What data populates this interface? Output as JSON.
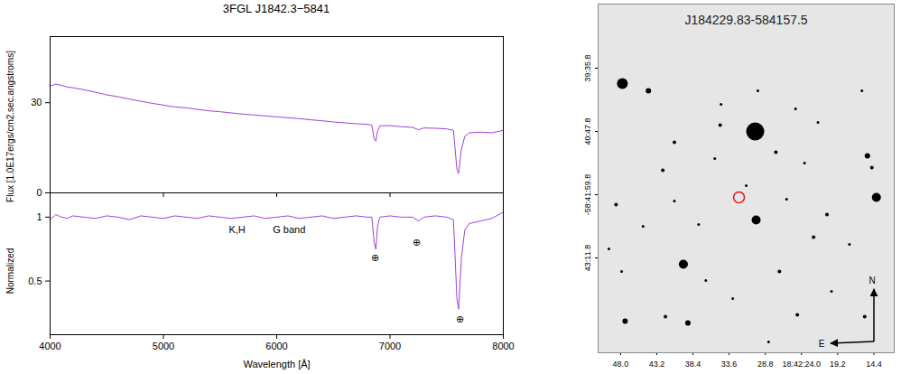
{
  "chart_data": [
    {
      "type": "line",
      "title": "3FGL J1842.3−5841",
      "ylabel": "Flux [1.0E17ergs/cm2.sec.angstroms]",
      "x": [
        4000,
        4050,
        4100,
        4150,
        4200,
        4300,
        4400,
        4500,
        4600,
        4700,
        4800,
        4900,
        5000,
        5100,
        5200,
        5300,
        5400,
        5500,
        5600,
        5700,
        5800,
        5900,
        6000,
        6100,
        6200,
        6300,
        6400,
        6500,
        6600,
        6700,
        6800,
        6840,
        6860,
        6875,
        6890,
        6910,
        7000,
        7100,
        7200,
        7250,
        7300,
        7400,
        7500,
        7560,
        7590,
        7605,
        7630,
        7660,
        7700,
        7800,
        7900,
        8000
      ],
      "values": [
        35.5,
        36.2,
        35.8,
        35.2,
        35.0,
        34.3,
        33.5,
        32.6,
        32.0,
        31.2,
        30.5,
        29.8,
        29.2,
        28.6,
        28.3,
        27.8,
        27.3,
        27.0,
        26.6,
        26.2,
        25.9,
        25.6,
        25.3,
        25.0,
        24.7,
        24.3,
        24.0,
        23.6,
        23.3,
        23.0,
        22.8,
        22.5,
        18.0,
        17.2,
        20.5,
        22.3,
        22.4,
        22.0,
        21.8,
        21.0,
        21.6,
        21.5,
        21.3,
        20.8,
        8.0,
        6.5,
        14.5,
        18.8,
        20.0,
        20.2,
        20.0,
        20.8
      ],
      "color": "#a040d8",
      "xlim": [
        4000,
        8000
      ],
      "xticks": [
        4000,
        5000,
        6000,
        7000,
        8000
      ],
      "ylim": [
        0,
        52
      ],
      "yticks": [
        0,
        30
      ],
      "tick_labels": "y"
    },
    {
      "type": "line",
      "ylabel": "Normalized",
      "xlabel": "Wavelength [Å]",
      "x": [
        4000,
        4050,
        4100,
        4150,
        4200,
        4300,
        4400,
        4500,
        4600,
        4700,
        4800,
        4900,
        5000,
        5100,
        5200,
        5300,
        5400,
        5500,
        5600,
        5700,
        5800,
        5900,
        6000,
        6100,
        6200,
        6300,
        6400,
        6500,
        6600,
        6700,
        6800,
        6840,
        6860,
        6875,
        6890,
        6910,
        7000,
        7100,
        7200,
        7250,
        7300,
        7400,
        7500,
        7560,
        7590,
        7605,
        7630,
        7660,
        7700,
        7800,
        7900,
        8000
      ],
      "values": [
        0.98,
        1.02,
        1.0,
        0.99,
        1.01,
        1.0,
        0.99,
        1.01,
        1.0,
        0.98,
        1.01,
        1.0,
        0.99,
        1.01,
        1.0,
        0.99,
        1.01,
        1.0,
        0.99,
        1.0,
        1.01,
        0.99,
        1.0,
        1.01,
        0.99,
        1.0,
        1.01,
        0.99,
        1.0,
        1.01,
        1.0,
        1.0,
        0.8,
        0.75,
        0.93,
        1.0,
        1.01,
        1.0,
        1.0,
        0.97,
        1.0,
        1.01,
        1.0,
        0.98,
        0.37,
        0.28,
        0.68,
        0.9,
        0.95,
        0.97,
        0.99,
        1.04
      ],
      "color": "#a040d8",
      "xlim": [
        4000,
        8000
      ],
      "xticks": [
        4000,
        5000,
        6000,
        7000,
        8000
      ],
      "ylim": [
        0.08,
        1.19
      ],
      "yticks": [
        0.5,
        1
      ],
      "annotations": [
        {
          "x": 5650,
          "y": 0.9,
          "text": "K,H"
        },
        {
          "x": 6110,
          "y": 0.9,
          "text": "G band"
        },
        {
          "x": 6870,
          "y": 0.68,
          "text": "⊕"
        },
        {
          "x": 7235,
          "y": 0.8,
          "text": "⊕"
        },
        {
          "x": 7618,
          "y": 0.2,
          "text": "⊕"
        }
      ]
    },
    {
      "type": "scatter",
      "title": "J184229.83-584157.5",
      "x": [
        30.14,
        47.76,
        44.31,
        30.02,
        39.67,
        14.07,
        15.26,
        14.67,
        47.4,
        39.07,
        22.4,
        20.62,
        27.4,
        34.79,
        40.86,
        48.6,
        42.4,
        34.67,
        29.79,
        24.79,
        21.81,
        15.98,
        42.05,
        36.69,
        33.12,
        26.93,
        24.55,
        20.02,
        17.64,
        49.55,
        47.86,
        28.36,
        35.5,
        40.86,
        45.02,
        15.62,
        25.98,
        23.6,
        31.33,
        37.64
      ],
      "y": [
        2447.8,
        2393.3,
        2401.5,
        2548.6,
        2599.0,
        2522.9,
        2475.6,
        2488.9,
        2663.8,
        2665.9,
        2568.1,
        2542.4,
        2471.5,
        2440.6,
        2460.1,
        2531.1,
        2492.0,
        2416.9,
        2401.5,
        2422.1,
        2437.5,
        2401.5,
        2658.7,
        2617.5,
        2638.1,
        2607.2,
        2656.6,
        2629.9,
        2576.4,
        2581.5,
        2607.2,
        2687.5,
        2478.7,
        2527.0,
        2555.8,
        2658.7,
        2524.9,
        2483.8,
        2509.5,
        2553.8
      ],
      "sizes": [
        10,
        6,
        3,
        5,
        5,
        5,
        3,
        2,
        3,
        3,
        2,
        2,
        2,
        2,
        2,
        2,
        2,
        1.5,
        1.5,
        1.5,
        1.5,
        1.5,
        2,
        1.5,
        1.5,
        2,
        2,
        1.5,
        1.5,
        1.5,
        1.5,
        1.5,
        1.5,
        1.5,
        1.5,
        2,
        1.5,
        1.5,
        1.5,
        1.5
      ],
      "color": "#000000",
      "target": {
        "x": 32.29,
        "y": 2522.9,
        "color": "#e41a1c"
      },
      "xlim": [
        50.98,
        11.7
      ],
      "xticks": [
        {
          "value": 48,
          "label": "48.0"
        },
        {
          "value": 43.2,
          "label": "43.2"
        },
        {
          "value": 38.4,
          "label": "38.4"
        },
        {
          "value": 33.6,
          "label": "33.6"
        },
        {
          "value": 28.8,
          "label": "28.8"
        },
        {
          "value": 24,
          "label": "18:42:24.0"
        },
        {
          "value": 19.2,
          "label": "19.2"
        },
        {
          "value": 14.4,
          "label": "14.4"
        }
      ],
      "ylim": [
        2699.8,
        2302.8
      ],
      "yticks": [
        {
          "value": 2375.8,
          "label": "39:35.8"
        },
        {
          "value": 2447.8,
          "label": "40:47.8"
        },
        {
          "value": 2519.8,
          "label": "-58:41:59.8"
        },
        {
          "value": 2591.8,
          "label": "43:11.8"
        }
      ],
      "compass": {
        "north": "N",
        "east": "E"
      }
    }
  ]
}
